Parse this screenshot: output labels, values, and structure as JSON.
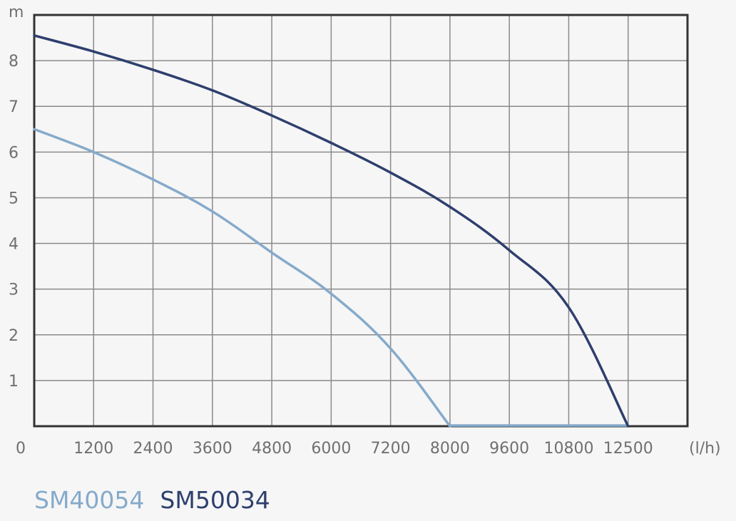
{
  "chart_data": {
    "type": "line",
    "xlabel": "(l/h)",
    "ylabel": "m",
    "x_ticks": [
      "0",
      "1200",
      "2400",
      "3600",
      "4800",
      "6000",
      "7200",
      "8000",
      "9600",
      "10800",
      "12500"
    ],
    "y_ticks": [
      "1",
      "2",
      "3",
      "4",
      "5",
      "6",
      "7",
      "8"
    ],
    "grid": true,
    "series": [
      {
        "name": "SM40054",
        "color": "#85aacb",
        "points": [
          [
            0,
            6.5
          ],
          [
            1200,
            6.0
          ],
          [
            2400,
            5.4
          ],
          [
            3600,
            4.7
          ],
          [
            4800,
            3.8
          ],
          [
            6000,
            2.9
          ],
          [
            7200,
            1.7
          ],
          [
            8000,
            0
          ],
          [
            12500,
            0
          ]
        ]
      },
      {
        "name": "SM50034",
        "color": "#2e3f6e",
        "points": [
          [
            0,
            8.55
          ],
          [
            1200,
            8.2
          ],
          [
            2400,
            7.8
          ],
          [
            3600,
            7.35
          ],
          [
            4800,
            6.8
          ],
          [
            6000,
            6.2
          ],
          [
            7200,
            5.55
          ],
          [
            8000,
            4.8
          ],
          [
            9600,
            3.85
          ],
          [
            10800,
            2.6
          ],
          [
            12500,
            0
          ]
        ]
      }
    ],
    "legend_position": "bottom-left"
  }
}
